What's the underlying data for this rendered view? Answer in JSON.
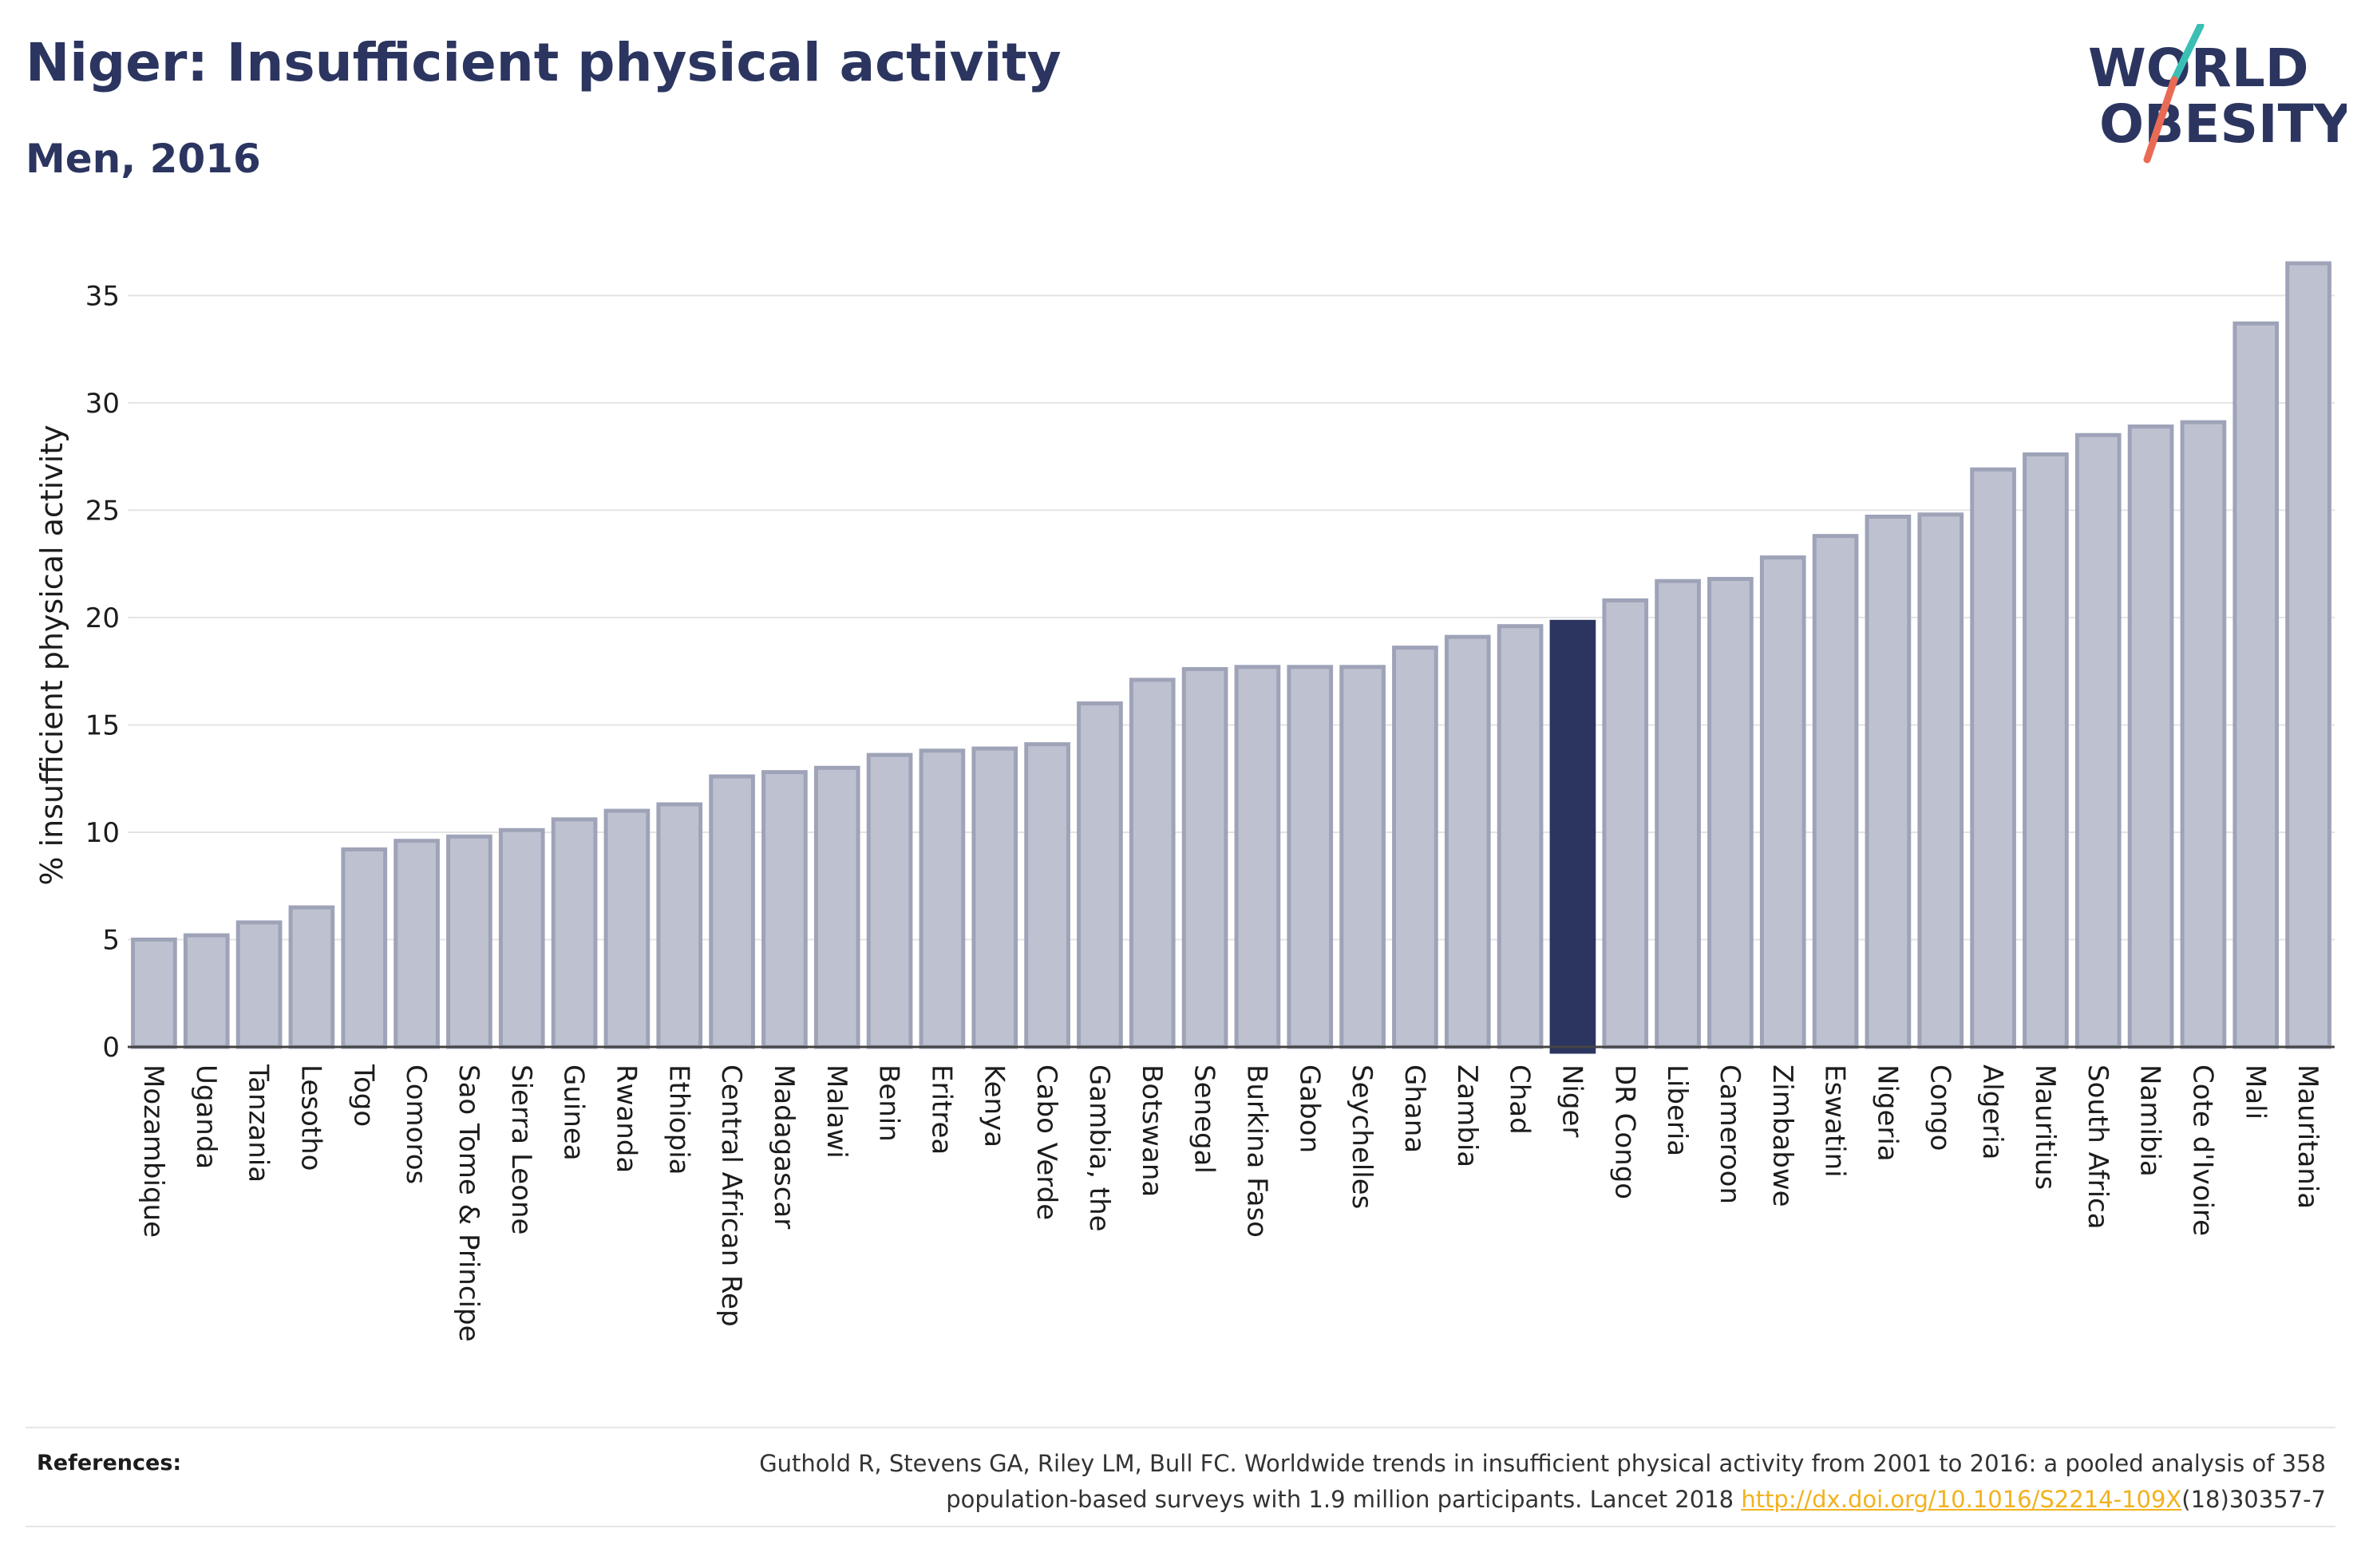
{
  "title": "Niger: Insufficient physical activity",
  "subtitle": "Men, 2016",
  "logo": {
    "line1": "WORLD",
    "line2": "OBESITY"
  },
  "colors": {
    "bar": "#bec2d0",
    "bar_stroke": "#9ea3b8",
    "highlight": "#2b3560",
    "title": "#2b3560",
    "link": "#f2b21f",
    "logo_slash_teal": "#3bbfb5",
    "logo_slash_coral": "#ea6b55"
  },
  "chart_data": {
    "type": "bar",
    "title": "Niger: Insufficient physical activity",
    "subtitle": "Men, 2016",
    "ylabel": "% insufficient physical activity",
    "xlabel": "",
    "ylim": [
      0,
      37
    ],
    "yticks": [
      0,
      5,
      10,
      15,
      20,
      25,
      30,
      35
    ],
    "grid": true,
    "highlight": "Niger",
    "categories": [
      "Mozambique",
      "Uganda",
      "Tanzania",
      "Lesotho",
      "Togo",
      "Comoros",
      "Sao Tome & Principe",
      "Sierra Leone",
      "Guinea",
      "Rwanda",
      "Ethiopia",
      "Central African Rep",
      "Madagascar",
      "Malawi",
      "Benin",
      "Eritrea",
      "Kenya",
      "Cabo Verde",
      "Gambia, the",
      "Botswana",
      "Senegal",
      "Burkina Faso",
      "Gabon",
      "Seychelles",
      "Ghana",
      "Zambia",
      "Chad",
      "Niger",
      "DR Congo",
      "Liberia",
      "Cameroon",
      "Zimbabwe",
      "Eswatini",
      "Nigeria",
      "Congo",
      "Algeria",
      "Mauritius",
      "South Africa",
      "Namibia",
      "Cote d'Ivoire",
      "Mali",
      "Mauritania"
    ],
    "values": [
      5.0,
      5.2,
      5.8,
      6.5,
      9.2,
      9.6,
      9.8,
      10.1,
      10.6,
      11.0,
      11.3,
      12.6,
      12.8,
      13.0,
      13.6,
      13.8,
      13.9,
      14.1,
      16.0,
      17.1,
      17.6,
      17.7,
      17.7,
      17.7,
      18.6,
      19.1,
      19.6,
      19.8,
      20.8,
      21.7,
      21.8,
      22.8,
      23.8,
      24.7,
      24.8,
      26.9,
      27.6,
      28.5,
      28.9,
      29.1,
      33.7,
      36.5
    ]
  },
  "references": {
    "label": "References:",
    "text_line1": "Guthold R, Stevens GA, Riley LM, Bull FC. Worldwide trends in insufficient physical activity from 2001 to 2016: a pooled analysis of 358",
    "text_line2_prefix": "population-based surveys with 1.9 million participants. Lancet 2018 ",
    "link_text": "http://dx.doi.org/10.1016/S2214-109X",
    "text_line2_suffix": "(18)30357-7"
  }
}
